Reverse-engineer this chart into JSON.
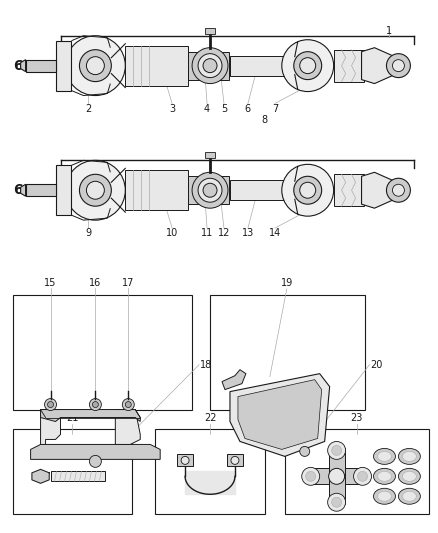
{
  "bg_color": "#ffffff",
  "line_color": "#1a1a1a",
  "gray1": "#aaaaaa",
  "gray2": "#cccccc",
  "gray3": "#e8e8e8",
  "fig_width": 4.38,
  "fig_height": 5.33,
  "dpi": 100
}
